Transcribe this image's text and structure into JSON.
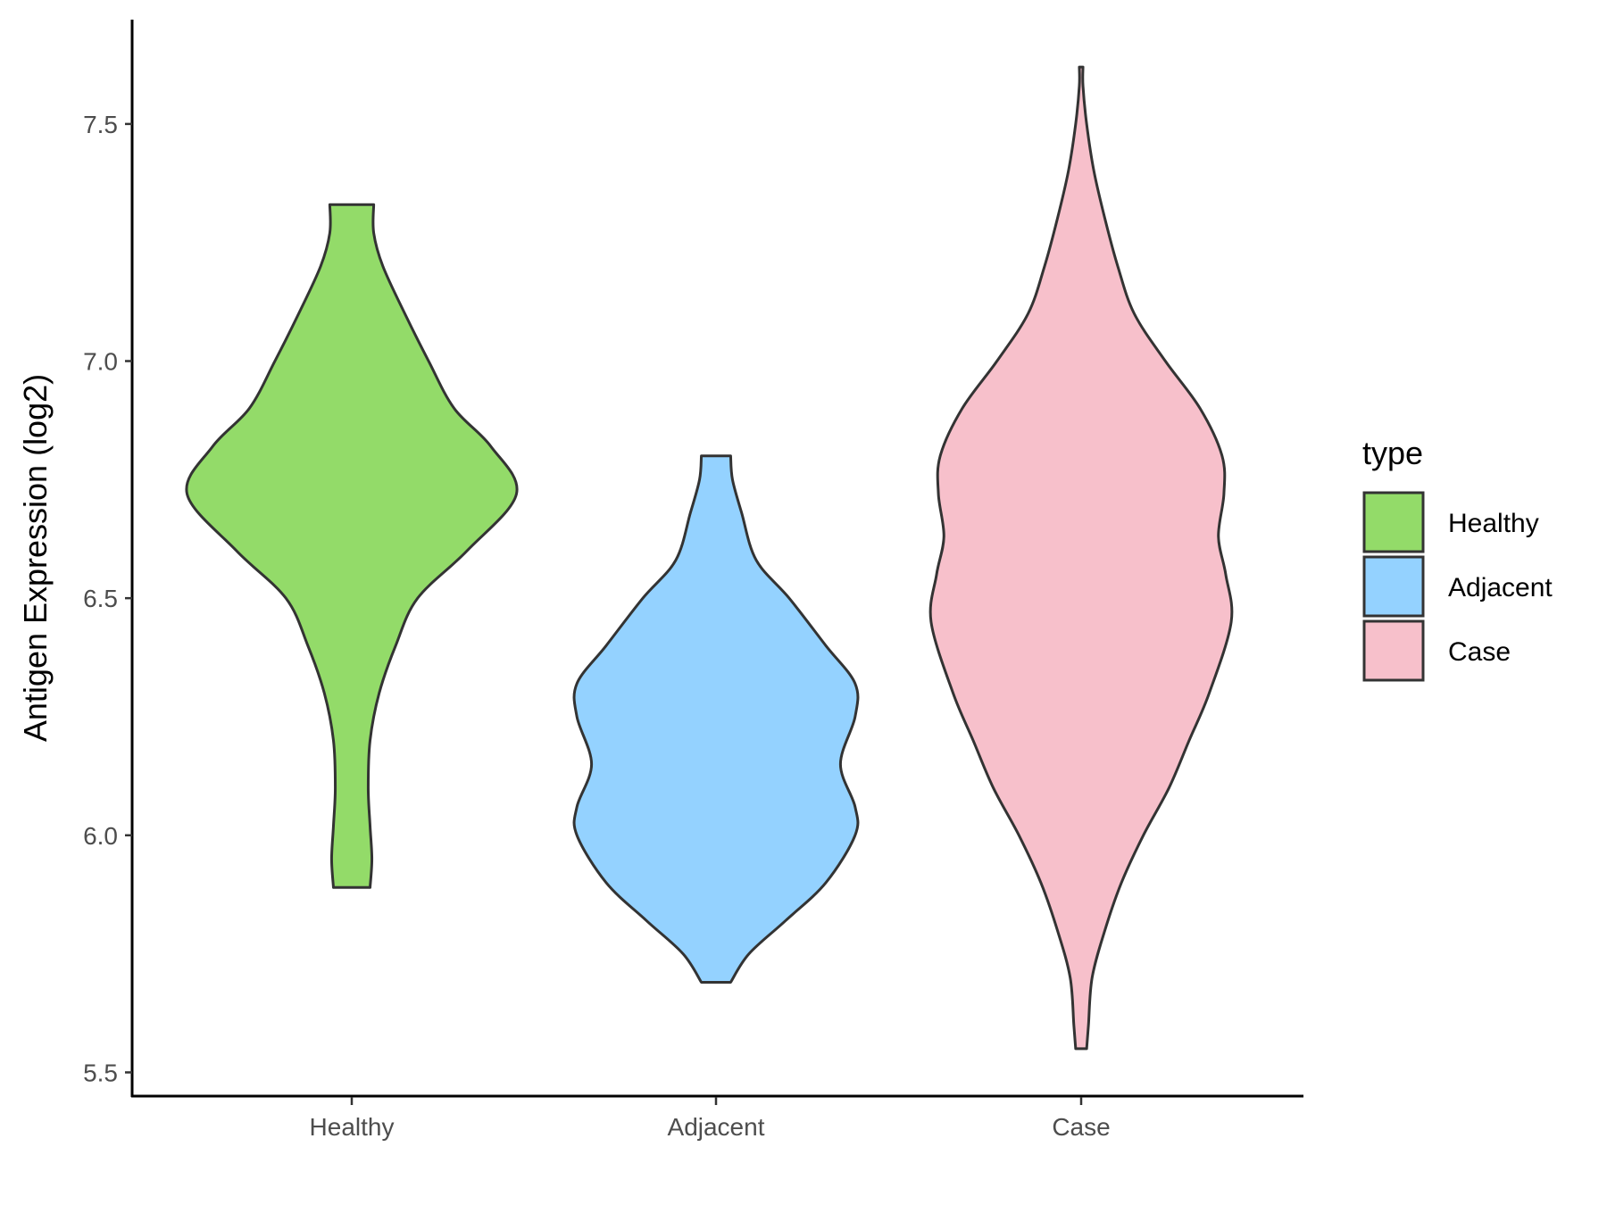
{
  "chart_data": {
    "type": "violin",
    "ylabel": "Antigen Expression (log2)",
    "xlabel": "",
    "ylim": [
      5.45,
      7.72
    ],
    "yticks": [
      5.5,
      6.0,
      6.5,
      7.0,
      7.5
    ],
    "ytick_labels": [
      "5.5",
      "6.0",
      "6.5",
      "7.0",
      "7.5"
    ],
    "categories": [
      "Healthy",
      "Adjacent",
      "Case"
    ],
    "grid": false,
    "legend": {
      "title": "type",
      "placement": "right",
      "entries": [
        "Healthy",
        "Adjacent",
        "Case"
      ]
    },
    "series": [
      {
        "category": "Healthy",
        "color": "#93DB69",
        "min": 5.89,
        "max": 7.33,
        "density": [
          [
            5.89,
            0.1
          ],
          [
            5.95,
            0.11
          ],
          [
            6.02,
            0.1
          ],
          [
            6.1,
            0.09
          ],
          [
            6.2,
            0.1
          ],
          [
            6.3,
            0.15
          ],
          [
            6.4,
            0.24
          ],
          [
            6.5,
            0.36
          ],
          [
            6.6,
            0.63
          ],
          [
            6.72,
            0.9
          ],
          [
            6.82,
            0.76
          ],
          [
            6.9,
            0.56
          ],
          [
            7.0,
            0.42
          ],
          [
            7.1,
            0.29
          ],
          [
            7.2,
            0.17
          ],
          [
            7.27,
            0.12
          ],
          [
            7.33,
            0.12
          ]
        ]
      },
      {
        "category": "Adjacent",
        "color": "#94D2FF",
        "min": 5.69,
        "max": 6.8,
        "density": [
          [
            5.69,
            0.08
          ],
          [
            5.75,
            0.18
          ],
          [
            5.82,
            0.38
          ],
          [
            5.9,
            0.6
          ],
          [
            6.0,
            0.76
          ],
          [
            6.06,
            0.76
          ],
          [
            6.15,
            0.68
          ],
          [
            6.25,
            0.76
          ],
          [
            6.32,
            0.76
          ],
          [
            6.4,
            0.6
          ],
          [
            6.5,
            0.4
          ],
          [
            6.58,
            0.22
          ],
          [
            6.68,
            0.14
          ],
          [
            6.75,
            0.09
          ],
          [
            6.8,
            0.08
          ]
        ]
      },
      {
        "category": "Case",
        "color": "#F7C0CB",
        "min": 5.55,
        "max": 7.62,
        "density": [
          [
            5.55,
            0.03
          ],
          [
            5.6,
            0.04
          ],
          [
            5.7,
            0.06
          ],
          [
            5.8,
            0.13
          ],
          [
            5.9,
            0.22
          ],
          [
            6.0,
            0.34
          ],
          [
            6.1,
            0.48
          ],
          [
            6.2,
            0.59
          ],
          [
            6.3,
            0.7
          ],
          [
            6.45,
            0.82
          ],
          [
            6.55,
            0.79
          ],
          [
            6.63,
            0.75
          ],
          [
            6.72,
            0.78
          ],
          [
            6.8,
            0.77
          ],
          [
            6.9,
            0.65
          ],
          [
            7.0,
            0.46
          ],
          [
            7.1,
            0.29
          ],
          [
            7.2,
            0.2
          ],
          [
            7.3,
            0.13
          ],
          [
            7.4,
            0.07
          ],
          [
            7.5,
            0.03
          ],
          [
            7.58,
            0.01
          ],
          [
            7.62,
            0.01
          ]
        ]
      }
    ]
  }
}
